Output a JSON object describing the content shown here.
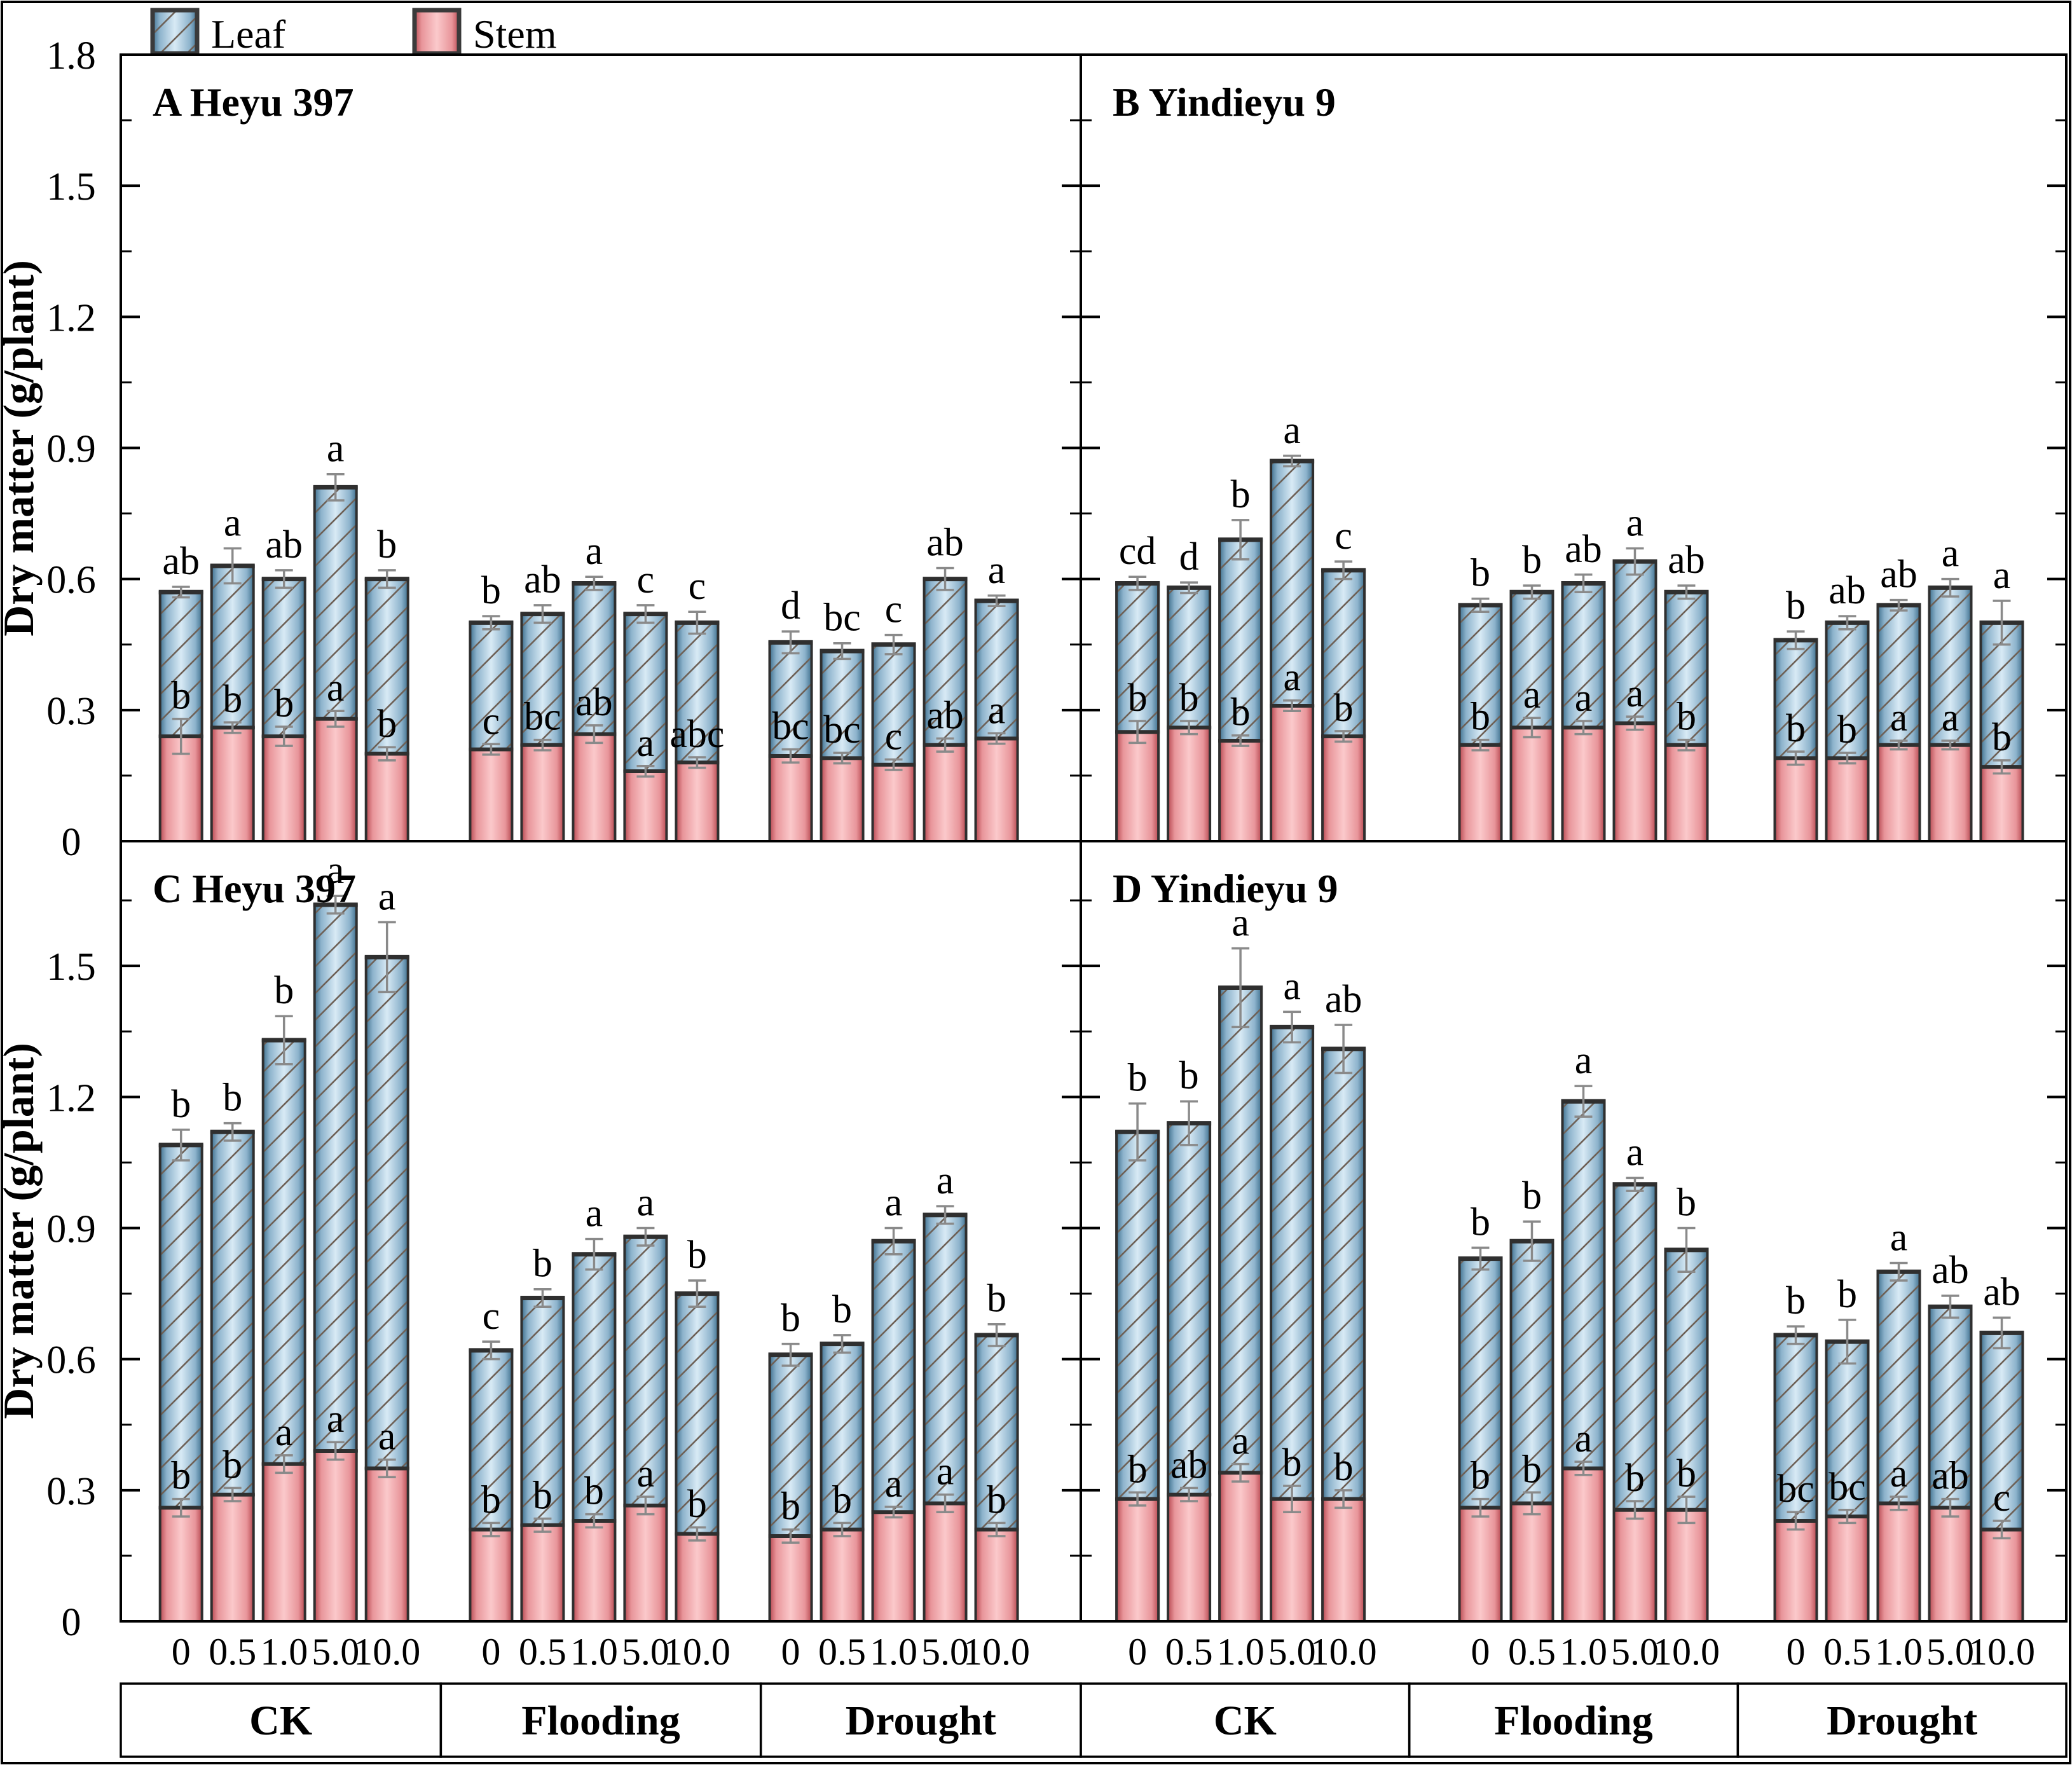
{
  "chart_data": {
    "type": "bar",
    "stacked": true,
    "ylabel": "Dry matter (g/plant)",
    "legend": [
      "Leaf",
      "Stem"
    ],
    "doses": [
      "0",
      "0.5",
      "1.0",
      "5.0",
      "10.0"
    ],
    "group_labels": [
      "CK",
      "Flooding",
      "Drought"
    ],
    "y_axis": {
      "top": {
        "lim": [
          0,
          1.8
        ],
        "major_ticks": [
          0,
          0.3,
          0.6,
          0.9,
          1.2,
          1.5,
          1.8
        ],
        "minor_ticks": [
          0.15,
          0.45,
          0.75,
          1.05,
          1.35,
          1.65
        ]
      },
      "bottom": {
        "lim": [
          0,
          1.785
        ],
        "major_ticks": [
          0,
          0.3,
          0.6,
          0.9,
          1.2,
          1.5
        ],
        "minor_ticks": [
          0.15,
          0.45,
          0.75,
          1.05,
          1.35,
          1.65
        ]
      }
    },
    "colors": {
      "leaf_edge": "#40718f",
      "leaf_mid": "#d8eaf5",
      "stem_edge": "#b84a52",
      "stem_mid": "#fbc9cb",
      "bar_outline": "#2f2f2f",
      "hatch": "#6e6157",
      "error_bar": "#8a8a8a",
      "axis": "#000000"
    },
    "panels": [
      {
        "id": "A",
        "title": "A Heyu 397",
        "row": 0,
        "col": 0,
        "groups": [
          {
            "label": "CK",
            "stem": [
              0.24,
              0.26,
              0.24,
              0.28,
              0.2
            ],
            "total": [
              0.57,
              0.63,
              0.6,
              0.81,
              0.6
            ],
            "stem_err": [
              0.04,
              0.012,
              0.022,
              0.018,
              0.015
            ],
            "total_err": [
              0.012,
              0.04,
              0.02,
              0.03,
              0.02
            ],
            "stem_letters": [
              "b",
              "b",
              "b",
              "a",
              "b"
            ],
            "total_letters": [
              "ab",
              "a",
              "ab",
              "a",
              "b"
            ]
          },
          {
            "label": "Flooding",
            "stem": [
              0.21,
              0.22,
              0.245,
              0.16,
              0.18
            ],
            "total": [
              0.5,
              0.52,
              0.59,
              0.52,
              0.5
            ],
            "stem_err": [
              0.012,
              0.012,
              0.02,
              0.012,
              0.012
            ],
            "total_err": [
              0.015,
              0.02,
              0.015,
              0.02,
              0.025
            ],
            "stem_letters": [
              "c",
              "bc",
              "ab",
              "a",
              "abc"
            ],
            "total_letters": [
              "b",
              "ab",
              "a",
              "c",
              "c"
            ]
          },
          {
            "label": "Drought",
            "stem": [
              0.195,
              0.19,
              0.175,
              0.22,
              0.235
            ],
            "total": [
              0.455,
              0.435,
              0.45,
              0.6,
              0.55
            ],
            "stem_err": [
              0.015,
              0.012,
              0.012,
              0.015,
              0.012
            ],
            "total_err": [
              0.025,
              0.018,
              0.022,
              0.025,
              0.012
            ],
            "stem_letters": [
              "bc",
              "bc",
              "c",
              "ab",
              "a"
            ],
            "total_letters": [
              "d",
              "bc",
              "c",
              "ab",
              "a"
            ]
          }
        ]
      },
      {
        "id": "B",
        "title": "B Yindieyu 9",
        "row": 0,
        "col": 1,
        "groups": [
          {
            "label": "CK",
            "stem": [
              0.25,
              0.26,
              0.23,
              0.31,
              0.24
            ],
            "total": [
              0.59,
              0.58,
              0.69,
              0.87,
              0.62
            ],
            "stem_err": [
              0.025,
              0.015,
              0.012,
              0.012,
              0.012
            ],
            "total_err": [
              0.015,
              0.012,
              0.045,
              0.012,
              0.02
            ],
            "stem_letters": [
              "b",
              "b",
              "b",
              "a",
              "b"
            ],
            "total_letters": [
              "cd",
              "d",
              "b",
              "a",
              "c"
            ]
          },
          {
            "label": "Flooding",
            "stem": [
              0.22,
              0.26,
              0.26,
              0.27,
              0.22
            ],
            "total": [
              0.54,
              0.57,
              0.59,
              0.64,
              0.57
            ],
            "stem_err": [
              0.012,
              0.022,
              0.015,
              0.015,
              0.012
            ],
            "total_err": [
              0.015,
              0.015,
              0.02,
              0.03,
              0.015
            ],
            "stem_letters": [
              "b",
              "a",
              "a",
              "a",
              "b"
            ],
            "total_letters": [
              "b",
              "b",
              "ab",
              "a",
              "ab"
            ]
          },
          {
            "label": "Drought",
            "stem": [
              0.19,
              0.19,
              0.22,
              0.22,
              0.17
            ],
            "total": [
              0.46,
              0.5,
              0.54,
              0.58,
              0.5
            ],
            "stem_err": [
              0.015,
              0.012,
              0.01,
              0.01,
              0.015
            ],
            "total_err": [
              0.02,
              0.015,
              0.012,
              0.02,
              0.05
            ],
            "stem_letters": [
              "b",
              "b",
              "a",
              "a",
              "b"
            ],
            "total_letters": [
              "b",
              "ab",
              "ab",
              "a",
              "a"
            ]
          }
        ]
      },
      {
        "id": "C",
        "title": "C Heyu 397",
        "row": 1,
        "col": 0,
        "groups": [
          {
            "label": "CK",
            "stem": [
              0.26,
              0.29,
              0.36,
              0.39,
              0.35
            ],
            "total": [
              1.09,
              1.12,
              1.33,
              1.64,
              1.52
            ],
            "stem_err": [
              0.02,
              0.015,
              0.02,
              0.02,
              0.02
            ],
            "total_err": [
              0.035,
              0.02,
              0.055,
              0.02,
              0.08
            ],
            "stem_letters": [
              "b",
              "b",
              "a",
              "a",
              "a"
            ],
            "total_letters": [
              "b",
              "b",
              "b",
              "a",
              "a"
            ]
          },
          {
            "label": "Flooding",
            "stem": [
              0.21,
              0.22,
              0.23,
              0.265,
              0.2
            ],
            "total": [
              0.62,
              0.74,
              0.84,
              0.88,
              0.75
            ],
            "stem_err": [
              0.015,
              0.015,
              0.015,
              0.02,
              0.015
            ],
            "total_err": [
              0.02,
              0.02,
              0.035,
              0.02,
              0.03
            ],
            "stem_letters": [
              "b",
              "b",
              "b",
              "a",
              "b"
            ],
            "total_letters": [
              "c",
              "b",
              "a",
              "a",
              "b"
            ]
          },
          {
            "label": "Drought",
            "stem": [
              0.195,
              0.21,
              0.25,
              0.27,
              0.21
            ],
            "total": [
              0.61,
              0.635,
              0.87,
              0.93,
              0.655
            ],
            "stem_err": [
              0.015,
              0.015,
              0.012,
              0.02,
              0.015
            ],
            "total_err": [
              0.025,
              0.02,
              0.03,
              0.02,
              0.025
            ],
            "stem_letters": [
              "b",
              "b",
              "a",
              "a",
              "b"
            ],
            "total_letters": [
              "b",
              "b",
              "a",
              "a",
              "b"
            ]
          }
        ]
      },
      {
        "id": "D",
        "title": "D Yindieyu 9",
        "row": 1,
        "col": 1,
        "groups": [
          {
            "label": "CK",
            "stem": [
              0.28,
              0.29,
              0.34,
              0.28,
              0.28
            ],
            "total": [
              1.12,
              1.14,
              1.45,
              1.36,
              1.31
            ],
            "stem_err": [
              0.015,
              0.015,
              0.02,
              0.03,
              0.02
            ],
            "total_err": [
              0.065,
              0.05,
              0.09,
              0.035,
              0.055
            ],
            "stem_letters": [
              "b",
              "ab",
              "a",
              "b",
              "b"
            ],
            "total_letters": [
              "b",
              "b",
              "a",
              "a",
              "ab"
            ]
          },
          {
            "label": "Flooding",
            "stem": [
              0.26,
              0.27,
              0.35,
              0.255,
              0.255
            ],
            "total": [
              0.83,
              0.87,
              1.19,
              1.0,
              0.85
            ],
            "stem_err": [
              0.02,
              0.025,
              0.015,
              0.02,
              0.03
            ],
            "total_err": [
              0.025,
              0.045,
              0.035,
              0.015,
              0.05
            ],
            "stem_letters": [
              "b",
              "b",
              "a",
              "b",
              "b"
            ],
            "total_letters": [
              "b",
              "b",
              "a",
              "a",
              "b"
            ]
          },
          {
            "label": "Drought",
            "stem": [
              0.23,
              0.24,
              0.27,
              0.26,
              0.21
            ],
            "total": [
              0.655,
              0.64,
              0.8,
              0.72,
              0.66
            ],
            "stem_err": [
              0.02,
              0.015,
              0.015,
              0.02,
              0.02
            ],
            "total_err": [
              0.02,
              0.05,
              0.02,
              0.025,
              0.035
            ],
            "stem_letters": [
              "bc",
              "bc",
              "a",
              "ab",
              "c"
            ],
            "total_letters": [
              "b",
              "b",
              "a",
              "ab",
              "ab"
            ]
          }
        ]
      }
    ]
  }
}
